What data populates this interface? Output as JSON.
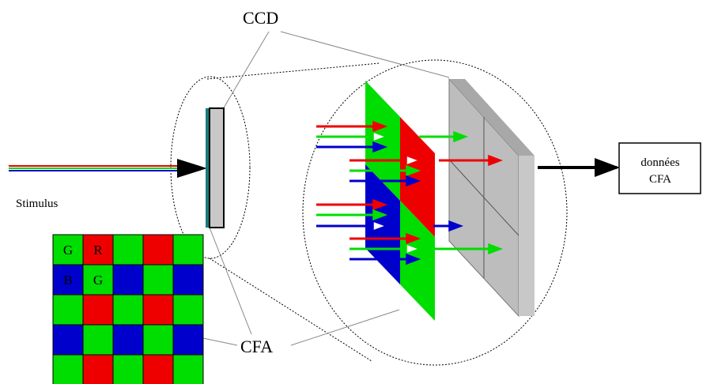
{
  "labels": {
    "ccd": "CCD",
    "cfa": "CFA",
    "stimulus": "Stimulus",
    "output_line1": "données",
    "output_line2": "CFA"
  },
  "bayer": {
    "rows": [
      [
        "G",
        "R",
        "G",
        "R",
        "G"
      ],
      [
        "B",
        "G",
        "B",
        "G",
        "B"
      ],
      [
        "G",
        "R",
        "G",
        "R",
        "G"
      ],
      [
        "B",
        "G",
        "B",
        "G",
        "B"
      ],
      [
        "G",
        "R",
        "G",
        "R",
        "G"
      ]
    ],
    "visible_letters": [
      [
        "G",
        "R",
        "",
        "",
        ""
      ],
      [
        "B",
        "G",
        "",
        "",
        ""
      ],
      [
        "",
        "",
        "",
        "",
        ""
      ],
      [
        "",
        "",
        "",
        "",
        ""
      ],
      [
        "",
        "",
        "",
        "",
        ""
      ]
    ]
  },
  "colors": {
    "red": "#ee0000",
    "green": "#00dd00",
    "blue": "#0000cc",
    "sensor_gray": "#c8c8c8",
    "sensor_edge": "#1a7a7a"
  }
}
